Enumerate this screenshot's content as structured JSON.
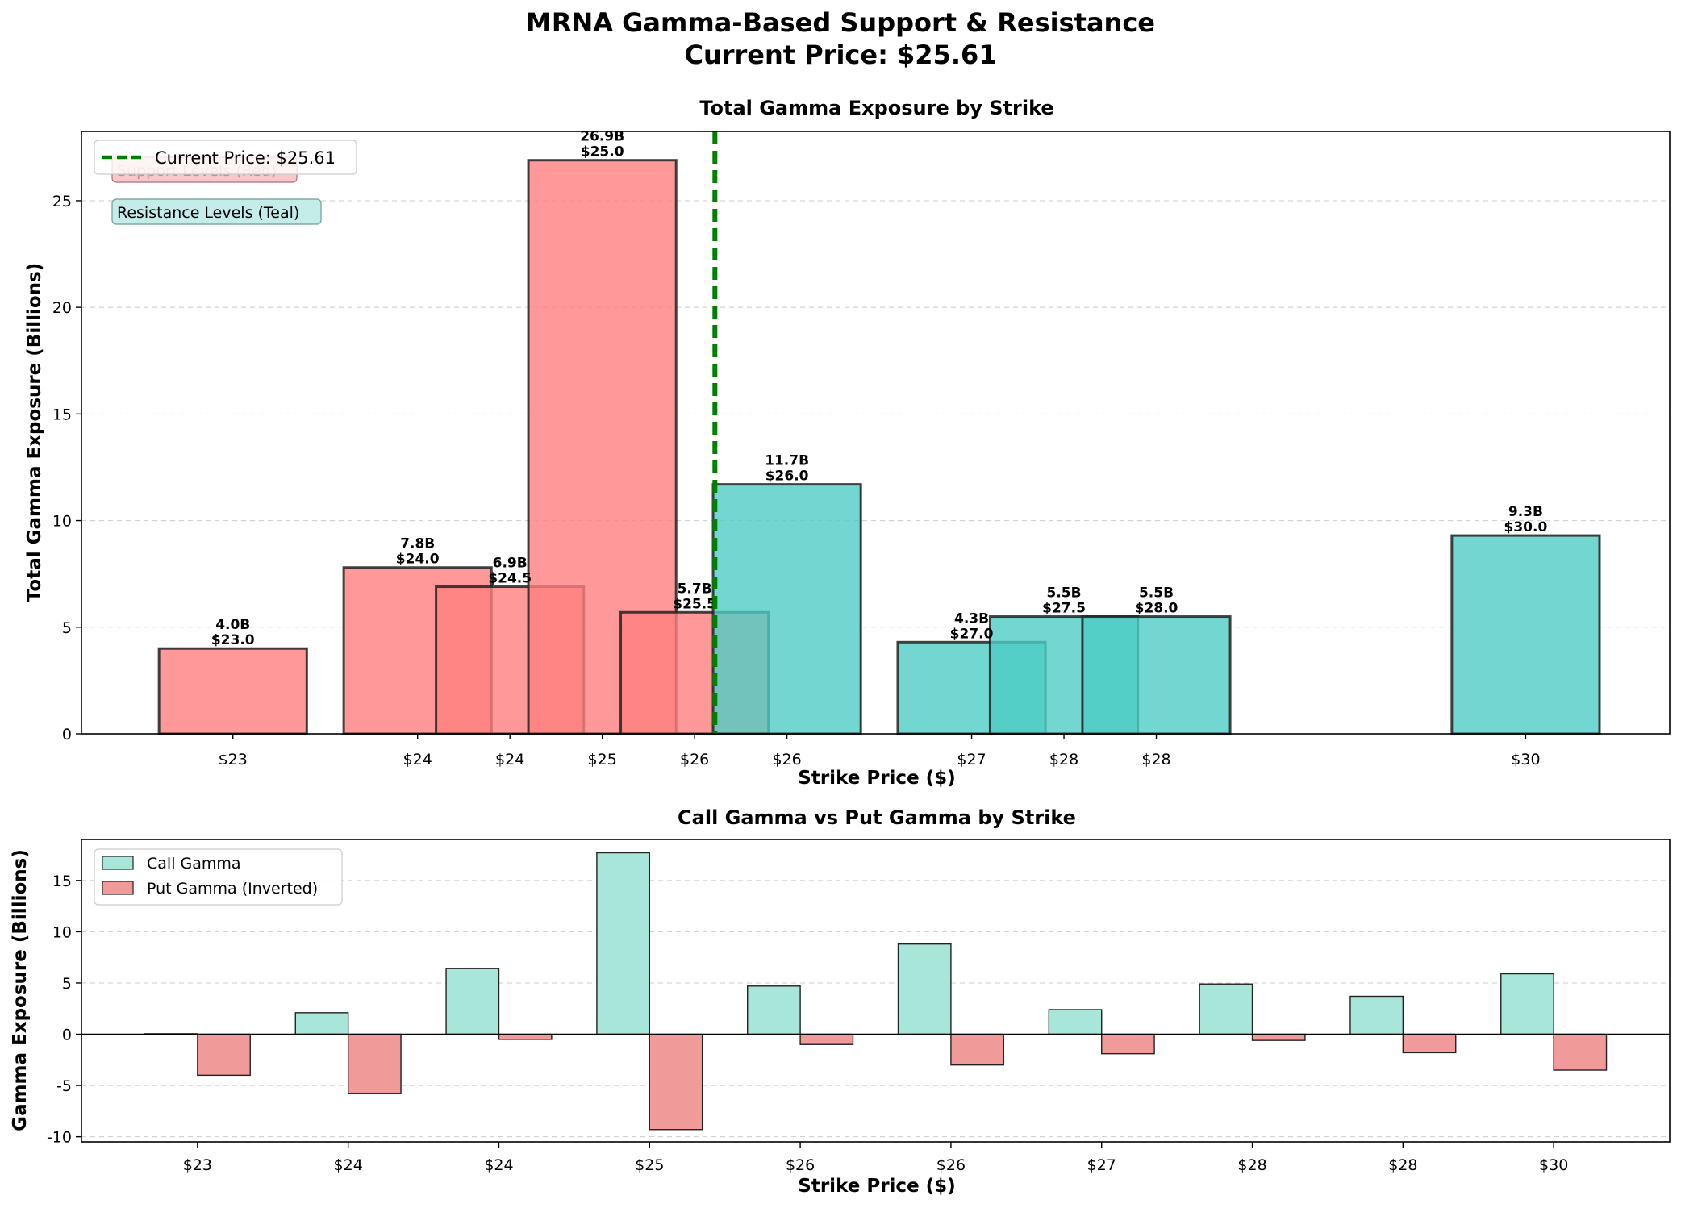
{
  "figure": {
    "title_line1": "MRNA Gamma-Based Support & Resistance",
    "title_line2": "Current Price: $25.61"
  },
  "colors": {
    "support": "#ff7f7f",
    "resistance": "#4ecdc4",
    "call": "#a8e6da",
    "put": "#f09a9a",
    "current_price_line": "#008000",
    "support_box": "#f8c8c8",
    "resistance_box": "#c4ece8"
  },
  "chart_data": [
    {
      "type": "bar",
      "title": "Total Gamma Exposure by Strike",
      "xlabel": "Strike Price ($)",
      "ylabel": "Total Gamma Exposure (Billions)",
      "xlim": [
        22.18,
        30.78
      ],
      "ylim": [
        0,
        28.25
      ],
      "yticks": [
        0,
        5,
        10,
        15,
        20,
        25
      ],
      "grid": "y dashed",
      "legend": {
        "placement": "top-left",
        "entries": [
          "Current Price: $25.61"
        ]
      },
      "current_price": 25.61,
      "annotations": [
        "Support Levels (Red)",
        "Resistance Levels (Teal)"
      ],
      "bars": [
        {
          "strike": 23.0,
          "value": 4.0,
          "label_value": "4.0B",
          "label_strike": "$23.0",
          "tick": "$23",
          "level": "support"
        },
        {
          "strike": 24.0,
          "value": 7.8,
          "label_value": "7.8B",
          "label_strike": "$24.0",
          "tick": "$24",
          "level": "support"
        },
        {
          "strike": 24.5,
          "value": 6.9,
          "label_value": "6.9B",
          "label_strike": "$24.5",
          "tick": "$24",
          "level": "support"
        },
        {
          "strike": 25.0,
          "value": 26.9,
          "label_value": "26.9B",
          "label_strike": "$25.0",
          "tick": "$25",
          "level": "support"
        },
        {
          "strike": 25.5,
          "value": 5.7,
          "label_value": "5.7B",
          "label_strike": "$25.5",
          "tick": "$26",
          "level": "support"
        },
        {
          "strike": 26.0,
          "value": 11.7,
          "label_value": "11.7B",
          "label_strike": "$26.0",
          "tick": "$26",
          "level": "resistance"
        },
        {
          "strike": 27.0,
          "value": 4.3,
          "label_value": "4.3B",
          "label_strike": "$27.0",
          "tick": "$27",
          "level": "resistance"
        },
        {
          "strike": 27.5,
          "value": 5.5,
          "label_value": "5.5B",
          "label_strike": "$27.5",
          "tick": "$28",
          "level": "resistance"
        },
        {
          "strike": 28.0,
          "value": 5.5,
          "label_value": "5.5B",
          "label_strike": "$28.0",
          "tick": "$28",
          "level": "resistance"
        },
        {
          "strike": 30.0,
          "value": 9.3,
          "label_value": "9.3B",
          "label_strike": "$30.0",
          "tick": "$30",
          "level": "resistance"
        }
      ]
    },
    {
      "type": "bar",
      "title": "Call Gamma vs Put Gamma by Strike",
      "xlabel": "Strike Price ($)",
      "ylabel": "Gamma Exposure (Billions)",
      "ylim": [
        -10.5,
        19.0
      ],
      "yticks": [
        -10,
        -5,
        0,
        5,
        10,
        15
      ],
      "grid": "y dashed",
      "legend": {
        "placement": "top-left"
      },
      "categories": [
        "$23",
        "$24",
        "$24",
        "$25",
        "$26",
        "$26",
        "$27",
        "$28",
        "$28",
        "$30"
      ],
      "series": [
        {
          "name": "Call Gamma",
          "values": [
            0.05,
            2.1,
            6.4,
            17.7,
            4.7,
            8.8,
            2.4,
            4.9,
            3.7,
            5.9
          ]
        },
        {
          "name": "Put Gamma (Inverted)",
          "values": [
            -4.0,
            -5.8,
            -0.5,
            -9.3,
            -1.0,
            -3.0,
            -1.9,
            -0.6,
            -1.8,
            -3.5
          ]
        }
      ]
    }
  ]
}
